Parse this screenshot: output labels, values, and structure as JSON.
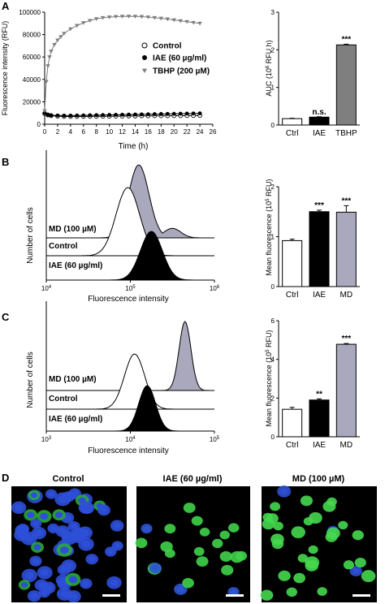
{
  "panels": {
    "A": "A",
    "B": "B",
    "C": "C",
    "D": "D"
  },
  "chart_data": [
    {
      "id": "A-line",
      "type": "line",
      "xlabel": "Time (h)",
      "ylabel": "Fluorescence intensity (RFU)",
      "xlim": [
        0,
        26
      ],
      "ylim": [
        0,
        100000
      ],
      "xticks": [
        "0",
        "2",
        "4",
        "6",
        "8",
        "10",
        "12",
        "14",
        "16",
        "18",
        "20",
        "22",
        "24",
        "26"
      ],
      "yticks": [
        "0",
        "20000",
        "40000",
        "60000",
        "80000",
        "100000"
      ],
      "legend_position": "right",
      "series": [
        {
          "name": "Control",
          "marker": "open-circle",
          "color": "#000000",
          "x": [
            0,
            0.5,
            1,
            2,
            3,
            4,
            5,
            6,
            7,
            8,
            9,
            10,
            11,
            12,
            13,
            14,
            15,
            16,
            17,
            18,
            19,
            20,
            21,
            22,
            23,
            24
          ],
          "y": [
            9500,
            8200,
            7600,
            7200,
            7000,
            6900,
            6900,
            6900,
            7000,
            7000,
            7100,
            7100,
            7200,
            7200,
            7300,
            7300,
            7400,
            7400,
            7500,
            7500,
            7500,
            7600,
            7600,
            7700,
            7700,
            7800
          ]
        },
        {
          "name": "IAE (60 µg/ml)",
          "marker": "filled-circle",
          "color": "#000000",
          "x": [
            0,
            0.5,
            1,
            2,
            3,
            4,
            5,
            6,
            7,
            8,
            9,
            10,
            11,
            12,
            13,
            14,
            15,
            16,
            17,
            18,
            19,
            20,
            21,
            22,
            23,
            24
          ],
          "y": [
            10000,
            8600,
            8000,
            7800,
            7700,
            7700,
            7800,
            7900,
            8000,
            8100,
            8200,
            8300,
            8400,
            8500,
            8600,
            8700,
            8800,
            8900,
            9000,
            9100,
            9200,
            9300,
            9400,
            9500,
            9600,
            9700
          ]
        },
        {
          "name": "TBHP (200 µM)",
          "marker": "filled-triangle-down",
          "color": "#7f7f7f",
          "x": [
            0,
            0.25,
            0.5,
            0.75,
            1,
            1.5,
            2,
            2.5,
            3,
            4,
            5,
            6,
            7,
            8,
            9,
            10,
            11,
            12,
            13,
            14,
            15,
            16,
            17,
            18,
            19,
            20,
            21,
            22,
            23,
            24
          ],
          "y": [
            12000,
            38000,
            52000,
            60000,
            65000,
            71000,
            75000,
            78000,
            81000,
            85000,
            88000,
            90500,
            92500,
            94000,
            95000,
            95600,
            96000,
            96200,
            96300,
            96200,
            96000,
            95600,
            95000,
            94500,
            93800,
            93000,
            92200,
            91500,
            90700,
            90000
          ]
        }
      ]
    },
    {
      "id": "A-bar",
      "type": "bar",
      "ylabel_parts": [
        "AUC (10",
        "6",
        " RFU h)"
      ],
      "ylim": [
        0,
        3
      ],
      "yticks": [
        "0",
        "1",
        "2",
        "3"
      ],
      "categories": [
        "Ctrl",
        "IAE",
        "TBHP"
      ],
      "values": [
        0.17,
        0.21,
        2.13
      ],
      "errors": [
        0.01,
        0.01,
        0.02
      ],
      "colors": [
        "#ffffff",
        "#000000",
        "#7f7f7f"
      ],
      "annotations": [
        "",
        "n.s.",
        "***"
      ]
    },
    {
      "id": "B-hist",
      "type": "area",
      "xlabel": "Fluorescence intensity",
      "ylabel": "Number of cells",
      "xlim_log10": [
        4,
        6
      ],
      "xtick_bases": [
        "10",
        "10",
        "10"
      ],
      "xtick_exps": [
        "4",
        "5",
        "6"
      ],
      "series": [
        {
          "name": "MD (100 µM)",
          "fill": "#a9a8bd",
          "peak_log10": 5.1,
          "width": 0.12,
          "tail": true
        },
        {
          "name": "Control",
          "fill": "#ffffff",
          "peak_log10": 4.97,
          "width": 0.14
        },
        {
          "name": "IAE (60 µg/ml)",
          "fill": "#000000",
          "peak_log10": 5.25,
          "width": 0.13
        }
      ]
    },
    {
      "id": "B-bar",
      "type": "bar",
      "ylabel_parts": [
        "Mean fluorescence (10",
        "5",
        " RFU)"
      ],
      "ylim": [
        0,
        2
      ],
      "yticks": [
        "0",
        "1",
        "2"
      ],
      "categories": [
        "Ctrl",
        "IAE",
        "MD"
      ],
      "values": [
        0.92,
        1.5,
        1.49
      ],
      "errors": [
        0.03,
        0.03,
        0.13
      ],
      "colors": [
        "#ffffff",
        "#000000",
        "#a9a8bd"
      ],
      "annotations": [
        "",
        "***",
        "***"
      ]
    },
    {
      "id": "C-hist",
      "type": "area",
      "xlabel": "Fluorescence intensity",
      "ylabel": "Number of cells",
      "xlim_log10": [
        3,
        5
      ],
      "xtick_bases": [
        "10",
        "10",
        "10"
      ],
      "xtick_exps": [
        "3",
        "4",
        "5"
      ],
      "series": [
        {
          "name": "MD (100 µM)",
          "fill": "#a9a8bd",
          "peak_log10": 4.65,
          "width": 0.07
        },
        {
          "name": "Control",
          "fill": "#ffffff",
          "peak_log10": 4.05,
          "width": 0.12
        },
        {
          "name": "IAE (60 µg/ml)",
          "fill": "#000000",
          "peak_log10": 4.2,
          "width": 0.1
        }
      ]
    },
    {
      "id": "C-bar",
      "type": "bar",
      "ylabel_parts": [
        "Mean fluorescence (10",
        "5",
        " RFU)"
      ],
      "ylim": [
        0,
        6
      ],
      "yticks": [
        "0",
        "2",
        "4",
        "6"
      ],
      "categories": [
        "Ctrl",
        "IAE",
        "MD"
      ],
      "values": [
        1.42,
        1.9,
        4.78
      ],
      "errors": [
        0.1,
        0.06,
        0.04
      ],
      "colors": [
        "#ffffff",
        "#000000",
        "#a9a8bd"
      ],
      "annotations": [
        "",
        "**",
        "***"
      ]
    }
  ],
  "micrographs": [
    {
      "label": "Control",
      "style": "dense-blue"
    },
    {
      "label": "IAE (60 µg/ml)",
      "style": "sparse-green"
    },
    {
      "label": "MD (100 µM)",
      "style": "bright-green"
    }
  ]
}
